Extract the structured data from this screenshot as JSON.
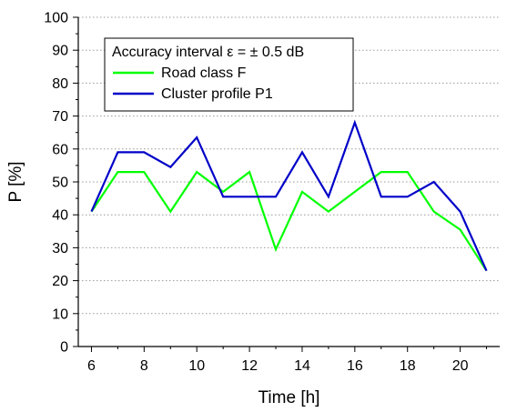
{
  "chart_data": {
    "type": "line",
    "xlabel": "Time [h]",
    "ylabel": "P [%]",
    "xlim": [
      5.5,
      21.5
    ],
    "ylim": [
      0,
      100
    ],
    "x_ticks": [
      6,
      8,
      10,
      12,
      14,
      16,
      18,
      20
    ],
    "y_ticks": [
      0,
      10,
      20,
      30,
      40,
      50,
      60,
      70,
      80,
      90,
      100
    ],
    "grid": {
      "horizontal": "dotted",
      "vertical": false
    },
    "legend": {
      "title": "Accuracy interval ε = ± 0.5 dB",
      "placement": "top-left"
    },
    "x": [
      6,
      7,
      8,
      9,
      10,
      11,
      12,
      13,
      14,
      15,
      16,
      17,
      18,
      19,
      20,
      21
    ],
    "series": [
      {
        "name": "Road class F",
        "color": "#00ff00",
        "values": [
          41,
          53,
          53,
          41,
          53,
          47,
          53,
          29.5,
          47,
          41,
          47,
          53,
          53,
          41,
          35.5,
          23
        ]
      },
      {
        "name": "Cluster profile P1",
        "color": "#0000c8",
        "values": [
          41,
          59,
          59,
          54.5,
          63.5,
          45.5,
          45.5,
          45.5,
          59,
          45.5,
          68,
          45.5,
          45.5,
          50,
          41,
          23
        ]
      }
    ]
  }
}
